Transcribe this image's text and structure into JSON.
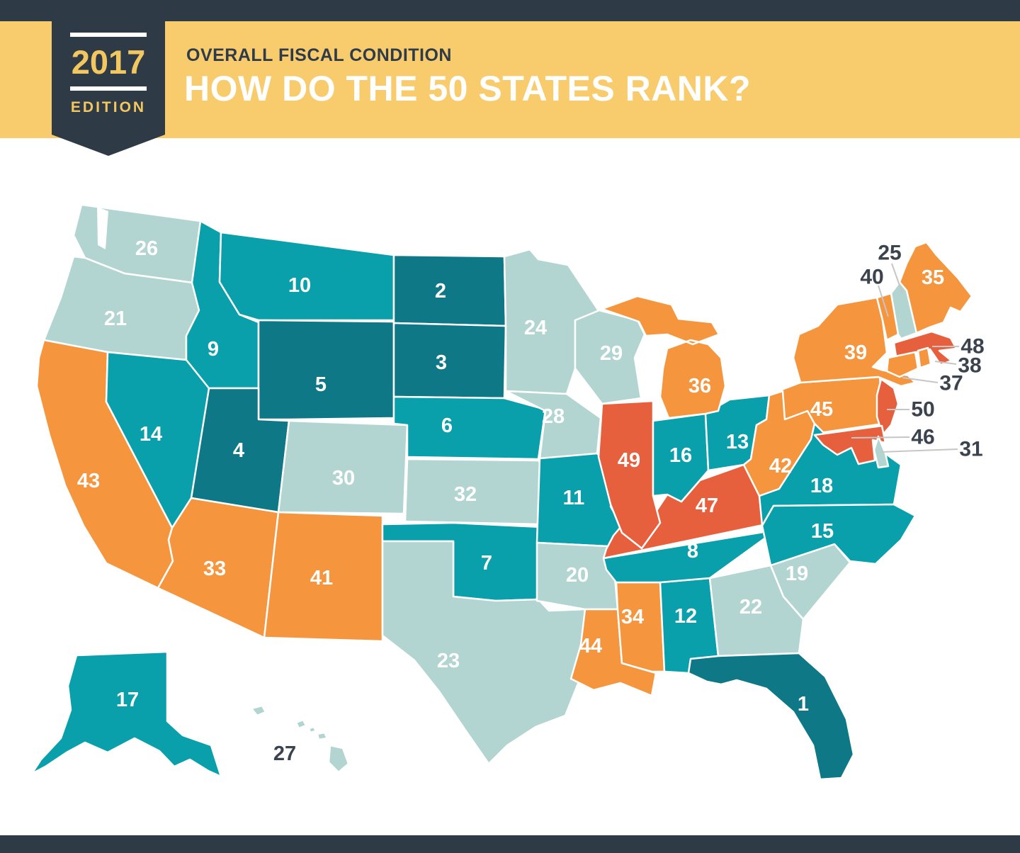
{
  "header": {
    "edition_year": "2017",
    "edition_label": "EDITION",
    "kicker": "OVERALL FISCAL CONDITION",
    "title": "HOW DO THE 50 STATES RANK?"
  },
  "palette": {
    "rank_1_5": "#0f7887",
    "rank_6_18": "#09a0ac",
    "rank_19_32": "#b2d5d1",
    "rank_33_45": "#f5953e",
    "rank_46_50": "#e7603d",
    "banner_yellow": "#f8cc6d",
    "navy": "#2f3a47",
    "gold_text": "#f2c75f",
    "state_label_text": "#ffffff",
    "callout_text": "#3b434e",
    "callout_line": "#c6c6c6"
  },
  "map": {
    "states": [
      {
        "id": "WA",
        "rank": 26,
        "bucket": "rank_19_32",
        "label": [
          207,
          351
        ]
      },
      {
        "id": "OR",
        "rank": 21,
        "bucket": "rank_19_32",
        "label": [
          163,
          450
        ]
      },
      {
        "id": "CA",
        "rank": 43,
        "bucket": "rank_33_45",
        "label": [
          125,
          679
        ]
      },
      {
        "id": "NV",
        "rank": 14,
        "bucket": "rank_6_18",
        "label": [
          213,
          613
        ]
      },
      {
        "id": "ID",
        "rank": 9,
        "bucket": "rank_6_18",
        "label": [
          301,
          493
        ]
      },
      {
        "id": "MT",
        "rank": 10,
        "bucket": "rank_6_18",
        "label": [
          423,
          403
        ]
      },
      {
        "id": "WY",
        "rank": 5,
        "bucket": "rank_1_5",
        "label": [
          453,
          543
        ]
      },
      {
        "id": "UT",
        "rank": 4,
        "bucket": "rank_1_5",
        "label": [
          337,
          636
        ]
      },
      {
        "id": "CO",
        "rank": 30,
        "bucket": "rank_19_32",
        "label": [
          485,
          675
        ]
      },
      {
        "id": "AZ",
        "rank": 33,
        "bucket": "rank_33_45",
        "label": [
          303,
          803
        ]
      },
      {
        "id": "NM",
        "rank": 41,
        "bucket": "rank_33_45",
        "label": [
          454,
          816
        ]
      },
      {
        "id": "ND",
        "rank": 2,
        "bucket": "rank_1_5",
        "label": [
          622,
          411
        ]
      },
      {
        "id": "SD",
        "rank": 3,
        "bucket": "rank_1_5",
        "label": [
          623,
          512
        ]
      },
      {
        "id": "NE",
        "rank": 6,
        "bucket": "rank_6_18",
        "label": [
          631,
          601
        ]
      },
      {
        "id": "KS",
        "rank": 32,
        "bucket": "rank_19_32",
        "label": [
          657,
          698
        ]
      },
      {
        "id": "OK",
        "rank": 7,
        "bucket": "rank_6_18",
        "label": [
          687,
          795
        ]
      },
      {
        "id": "TX",
        "rank": 23,
        "bucket": "rank_19_32",
        "label": [
          633,
          933
        ]
      },
      {
        "id": "MN",
        "rank": 24,
        "bucket": "rank_19_32",
        "label": [
          756,
          463
        ]
      },
      {
        "id": "IA",
        "rank": 28,
        "bucket": "rank_19_32",
        "label": [
          781,
          588
        ]
      },
      {
        "id": "MO",
        "rank": 11,
        "bucket": "rank_6_18",
        "label": [
          810,
          703
        ]
      },
      {
        "id": "AR",
        "rank": 20,
        "bucket": "rank_19_32",
        "label": [
          815,
          812
        ]
      },
      {
        "id": "LA",
        "rank": 44,
        "bucket": "rank_33_45",
        "label": [
          834,
          912
        ]
      },
      {
        "id": "WI",
        "rank": 29,
        "bucket": "rank_19_32",
        "label": [
          863,
          499
        ]
      },
      {
        "id": "IL",
        "rank": 49,
        "bucket": "rank_46_50",
        "label": [
          888,
          650
        ]
      },
      {
        "id": "MI",
        "rank": 36,
        "bucket": "rank_33_45",
        "label": [
          988,
          545
        ]
      },
      {
        "id": "IN",
        "rank": 16,
        "bucket": "rank_6_18",
        "label": [
          961,
          643
        ]
      },
      {
        "id": "OH",
        "rank": 13,
        "bucket": "rank_6_18",
        "label": [
          1041,
          624
        ]
      },
      {
        "id": "KY",
        "rank": 47,
        "bucket": "rank_46_50",
        "label": [
          998,
          714
        ]
      },
      {
        "id": "TN",
        "rank": 8,
        "bucket": "rank_6_18",
        "label": [
          978,
          778
        ]
      },
      {
        "id": "MS",
        "rank": 34,
        "bucket": "rank_33_45",
        "label": [
          893,
          871
        ]
      },
      {
        "id": "AL",
        "rank": 12,
        "bucket": "rank_6_18",
        "label": [
          968,
          870
        ]
      },
      {
        "id": "GA",
        "rank": 22,
        "bucket": "rank_19_32",
        "label": [
          1060,
          857
        ]
      },
      {
        "id": "SC",
        "rank": 19,
        "bucket": "rank_19_32",
        "label": [
          1125,
          810
        ]
      },
      {
        "id": "NC",
        "rank": 15,
        "bucket": "rank_6_18",
        "label": [
          1161,
          750
        ]
      },
      {
        "id": "VA",
        "rank": 18,
        "bucket": "rank_6_18",
        "label": [
          1160,
          686
        ]
      },
      {
        "id": "WV",
        "rank": 42,
        "bucket": "rank_33_45",
        "label": [
          1102,
          658
        ]
      },
      {
        "id": "FL",
        "rank": 1,
        "bucket": "rank_1_5",
        "label": [
          1134,
          994
        ]
      },
      {
        "id": "PA",
        "rank": 45,
        "bucket": "rank_33_45",
        "label": [
          1160,
          578
        ]
      },
      {
        "id": "NY",
        "rank": 39,
        "bucket": "rank_33_45",
        "label": [
          1208,
          498
        ]
      },
      {
        "id": "ME",
        "rank": 35,
        "bucket": "rank_33_45",
        "label": [
          1317,
          392
        ]
      },
      {
        "id": "AK",
        "rank": 17,
        "bucket": "rank_6_18",
        "label": [
          180,
          988
        ]
      },
      {
        "id": "HI",
        "rank": 27,
        "bucket": "rank_19_32",
        "label": [
          402,
          1064
        ],
        "dark_label": true
      },
      {
        "id": "VT",
        "rank": 40,
        "bucket": "rank_33_45",
        "label": null
      },
      {
        "id": "NH",
        "rank": 25,
        "bucket": "rank_19_32",
        "label": null
      },
      {
        "id": "MA",
        "rank": 48,
        "bucket": "rank_46_50",
        "label": null
      },
      {
        "id": "RI",
        "rank": 38,
        "bucket": "rank_33_45",
        "label": null
      },
      {
        "id": "CT",
        "rank": 37,
        "bucket": "rank_33_45",
        "label": null
      },
      {
        "id": "NJ",
        "rank": 50,
        "bucket": "rank_46_50",
        "label": null
      },
      {
        "id": "MD",
        "rank": 46,
        "bucket": "rank_46_50",
        "label": null
      },
      {
        "id": "DE",
        "rank": 31,
        "bucket": "rank_19_32",
        "label": null
      }
    ],
    "callouts": [
      {
        "rank": 25,
        "text": [
          1256,
          357
        ],
        "line": [
          1259,
          372,
          1274,
          414
        ]
      },
      {
        "rank": 40,
        "text": [
          1231,
          391
        ],
        "line": [
          1240,
          403,
          1254,
          447
        ]
      },
      {
        "rank": 48,
        "text": [
          1373,
          489
        ],
        "line": [
          1354,
          489,
          1316,
          489
        ]
      },
      {
        "rank": 38,
        "text": [
          1369,
          516
        ],
        "line": [
          1350,
          514,
          1320,
          510
        ]
      },
      {
        "rank": 37,
        "text": [
          1343,
          541
        ],
        "line": [
          1324,
          540,
          1274,
          533
        ]
      },
      {
        "rank": 50,
        "text": [
          1303,
          578
        ],
        "line": [
          1284,
          578,
          1252,
          578
        ]
      },
      {
        "rank": 46,
        "text": [
          1303,
          617
        ],
        "line": [
          1284,
          617,
          1202,
          618
        ]
      },
      {
        "rank": 31,
        "text": [
          1371,
          634
        ],
        "line": [
          1352,
          634,
          1244,
          638
        ]
      }
    ]
  }
}
